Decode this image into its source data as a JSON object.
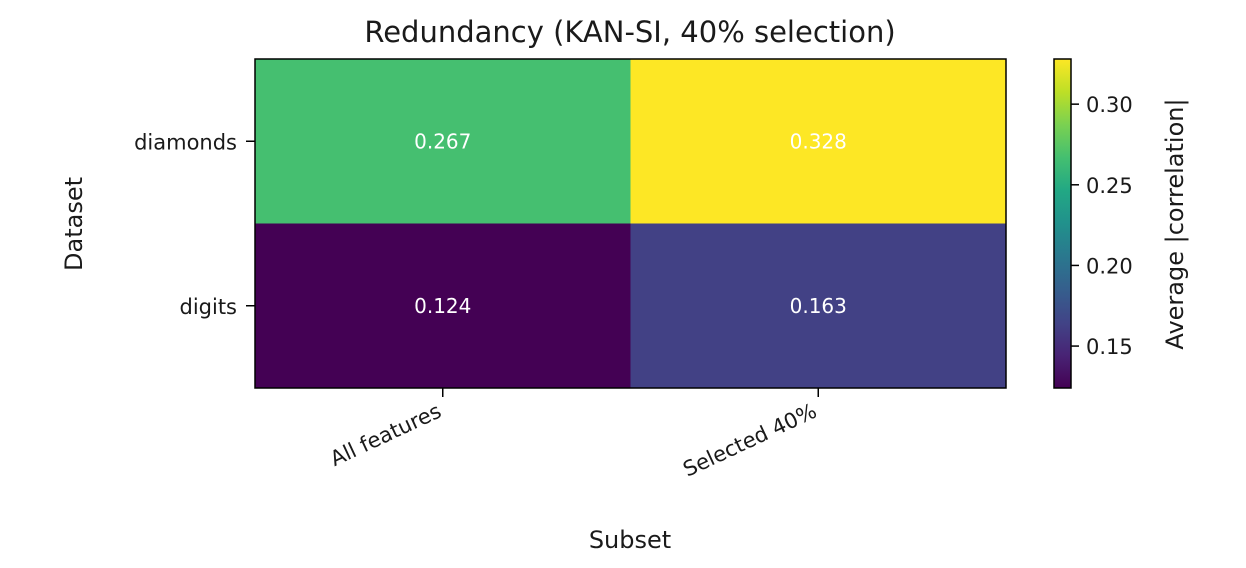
{
  "chart_data": {
    "type": "heatmap",
    "title": "Redundancy (KAN-SI, 40% selection)",
    "xlabel": "Subset",
    "ylabel": "Dataset",
    "x_categories": [
      "All features",
      "Selected 40%"
    ],
    "y_categories": [
      "diamonds",
      "digits"
    ],
    "values": [
      [
        0.267,
        0.328
      ],
      [
        0.124,
        0.163
      ]
    ],
    "cell_labels": [
      [
        "0.267",
        "0.328"
      ],
      [
        "0.124",
        "0.163"
      ]
    ],
    "colormap": "viridis",
    "colorbar": {
      "label": "Average |correlation|",
      "range": [
        0.124,
        0.328
      ],
      "ticks": [
        0.15,
        0.2,
        0.25,
        0.3
      ],
      "tick_labels": [
        "0.15",
        "0.20",
        "0.25",
        "0.30"
      ]
    },
    "grid": false
  }
}
